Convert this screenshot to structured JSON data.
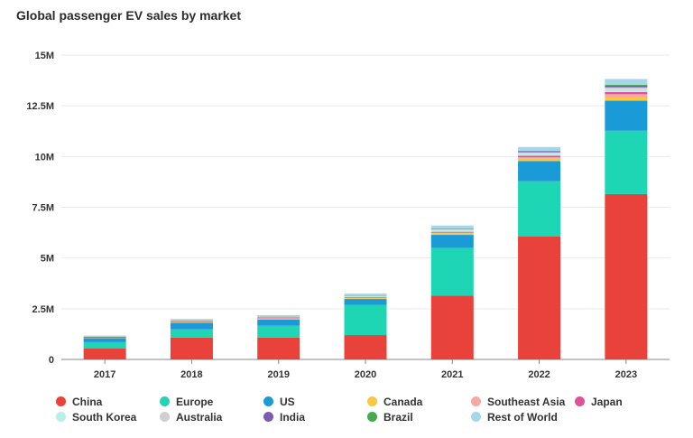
{
  "title": "Global passenger EV sales by market",
  "chart_data": {
    "type": "bar",
    "stacked": true,
    "title": "Global passenger EV sales by market",
    "categories": [
      "2017",
      "2018",
      "2019",
      "2020",
      "2021",
      "2022",
      "2023"
    ],
    "y_ticks": [
      "0",
      "2.5M",
      "5M",
      "7.5M",
      "10M",
      "12.5M",
      "15M"
    ],
    "ylim": [
      0,
      15000000
    ],
    "grid": true,
    "legend_position": "bottom",
    "series": [
      {
        "name": "China",
        "color": "#e8423a",
        "values": [
          550000,
          1080000,
          1080000,
          1200000,
          3150000,
          6070000,
          8150000
        ]
      },
      {
        "name": "Europe",
        "color": "#1fd6b4",
        "values": [
          300000,
          400000,
          580000,
          1480000,
          2350000,
          2710000,
          3120000
        ]
      },
      {
        "name": "US",
        "color": "#1b9ad8",
        "values": [
          200000,
          330000,
          310000,
          300000,
          640000,
          1000000,
          1480000
        ]
      },
      {
        "name": "Canada",
        "color": "#fbc73f",
        "values": [
          15000,
          35000,
          45000,
          40000,
          80000,
          110000,
          160000
        ]
      },
      {
        "name": "Southeast Asia",
        "color": "#f6a9a0",
        "values": [
          5000,
          10000,
          15000,
          20000,
          30000,
          70000,
          160000
        ]
      },
      {
        "name": "Japan",
        "color": "#e0509b",
        "values": [
          50000,
          50000,
          40000,
          30000,
          40000,
          80000,
          110000
        ]
      },
      {
        "name": "South Korea",
        "color": "#b6f0e6",
        "values": [
          15000,
          30000,
          35000,
          45000,
          100000,
          120000,
          140000
        ]
      },
      {
        "name": "Australia",
        "color": "#cfcfcf",
        "values": [
          10000,
          10000,
          15000,
          20000,
          30000,
          50000,
          90000
        ]
      },
      {
        "name": "India",
        "color": "#7e5bb3",
        "values": [
          5000,
          5000,
          10000,
          10000,
          20000,
          40000,
          80000
        ]
      },
      {
        "name": "Brazil",
        "color": "#47a84f",
        "values": [
          5000,
          5000,
          5000,
          10000,
          20000,
          30000,
          50000
        ]
      },
      {
        "name": "Rest of World",
        "color": "#a6d6ea",
        "values": [
          20000,
          40000,
          50000,
          90000,
          140000,
          190000,
          280000
        ]
      }
    ]
  }
}
